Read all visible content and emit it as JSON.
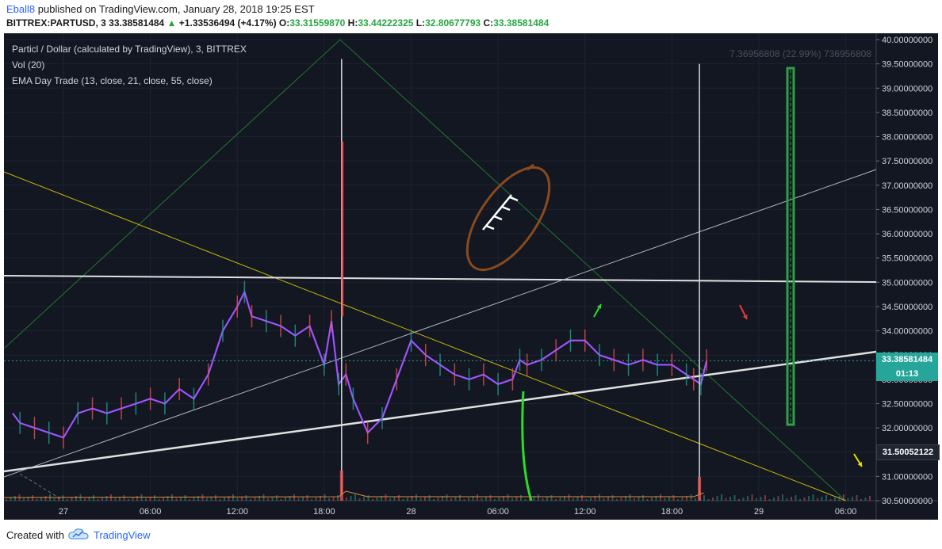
{
  "header": {
    "author": "Eball8",
    "published_text": "published on TradingView.com, January 28, 2018 19:25 EST",
    "symbol": "BITTREX:PARTUSD, 3",
    "last": "33.38581484",
    "change_arrow": "▲",
    "change": "+1.33536494 (+4.17%)",
    "o_label": "O:",
    "o_value": "33.31559870",
    "h_label": "H:",
    "h_value": "33.44222325",
    "l_label": "L:",
    "l_value": "32.80677793",
    "c_label": "C:",
    "c_value": "33.38581484"
  },
  "legend": {
    "title": "Particl / Dollar (calculated by TradingView), 3, BITTREX",
    "vol": "Vol (20)",
    "ema": "EMA Day Trade (13, close, 21, close, 55, close)"
  },
  "measure_label": "7.36956808 (22.99%) 736956808",
  "price_tags": {
    "last_price": "33.38581484",
    "countdown": "01:13",
    "level": "31.50052122"
  },
  "footer": {
    "created_with": "Created with",
    "brand": "TradingView"
  },
  "colors": {
    "background": "#131722",
    "last_price_tag": "#26a69a",
    "level_tag": "#1f2430",
    "ema_fast": "#e040fb",
    "ema_mid": "#2962ff",
    "ema_slow": "#c0843c",
    "brand": "#2962ff"
  },
  "chart_data": {
    "type": "line",
    "y_axis_ticks": [
      "40.00000000",
      "39.50000000",
      "39.00000000",
      "38.50000000",
      "38.00000000",
      "37.50000000",
      "37.00000000",
      "36.50000000",
      "36.00000000",
      "35.50000000",
      "35.00000000",
      "34.50000000",
      "34.00000000",
      "33.50000000",
      "33.00000000",
      "32.50000000",
      "32.00000000",
      "31.50000000",
      "31.00000000",
      "30.50000000"
    ],
    "ylim": [
      30.4,
      40.1
    ],
    "x_axis_ticks": [
      "27",
      "06:00",
      "12:00",
      "18:00",
      "28",
      "06:00",
      "12:00",
      "18:00",
      "29",
      "06:00"
    ],
    "x_tick_hours": [
      0,
      6,
      12,
      18,
      24,
      30,
      36,
      42,
      48,
      54
    ],
    "xlim": [
      -3.5,
      57.3
    ],
    "series": [
      {
        "name": "Price",
        "x": [
          -3.5,
          -3,
          -2,
          -1,
          0,
          1,
          2,
          3,
          4,
          5,
          6,
          7,
          8,
          9,
          10,
          11,
          12,
          12.5,
          13,
          14,
          15,
          16,
          17,
          18,
          18.5,
          19,
          19.5,
          20,
          21,
          22,
          23,
          24,
          25,
          26,
          27,
          28,
          29,
          30,
          31,
          31.5,
          32,
          33,
          34,
          35,
          36,
          37,
          38,
          39,
          40,
          41,
          42,
          43,
          43.5,
          44,
          44.4
        ],
        "y": [
          32.3,
          32.1,
          32.0,
          31.9,
          31.8,
          32.3,
          32.4,
          32.3,
          32.4,
          32.5,
          32.6,
          32.5,
          32.8,
          32.6,
          33.1,
          34.0,
          34.5,
          34.8,
          34.3,
          34.2,
          34.1,
          33.9,
          34.1,
          33.3,
          34.2,
          32.9,
          33.1,
          32.6,
          31.9,
          32.2,
          33.0,
          33.8,
          33.5,
          33.3,
          33.1,
          33.0,
          33.1,
          32.9,
          33.0,
          33.4,
          33.3,
          33.4,
          33.6,
          33.8,
          33.8,
          33.5,
          33.4,
          33.3,
          33.4,
          33.3,
          33.3,
          33.1,
          33.0,
          32.9,
          33.39
        ]
      }
    ],
    "spike_highs": [
      {
        "x": 19.2,
        "y": 39.6
      },
      {
        "x": 43.9,
        "y": 39.5
      }
    ]
  }
}
